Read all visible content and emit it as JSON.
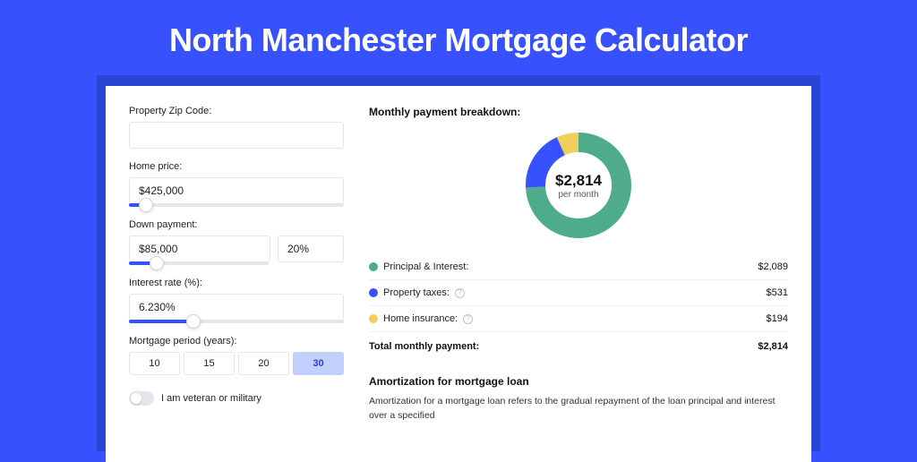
{
  "page": {
    "title": "North Manchester Mortgage Calculator",
    "bg_color": "#3751ff",
    "shadow_color": "#2b43d3",
    "card_bg": "#ffffff"
  },
  "form": {
    "zip": {
      "label": "Property Zip Code:",
      "value": ""
    },
    "home_price": {
      "label": "Home price:",
      "value": "$425,000",
      "slider_pct": 8
    },
    "down_payment": {
      "label": "Down payment:",
      "value": "$85,000",
      "pct_value": "20%",
      "slider_pct": 20
    },
    "interest": {
      "label": "Interest rate (%):",
      "value": "6.230%",
      "slider_pct": 30
    },
    "period": {
      "label": "Mortgage period (years):",
      "options": [
        "10",
        "15",
        "20",
        "30"
      ],
      "selected_index": 3
    },
    "veteran": {
      "label": "I am veteran or military",
      "on": false
    }
  },
  "breakdown": {
    "heading": "Monthly payment breakdown:",
    "donut": {
      "value": "$2,814",
      "sub": "per month",
      "slices": [
        {
          "key": "principal_interest",
          "pct": 74.2,
          "color": "#4eab8c"
        },
        {
          "key": "property_taxes",
          "pct": 18.9,
          "color": "#3751ff"
        },
        {
          "key": "home_insurance",
          "pct": 6.9,
          "color": "#f1cf5b"
        }
      ]
    },
    "items": [
      {
        "label": "Principal & Interest:",
        "amount": "$2,089",
        "color": "#4eab8c",
        "info": false
      },
      {
        "label": "Property taxes:",
        "amount": "$531",
        "color": "#3751ff",
        "info": true
      },
      {
        "label": "Home insurance:",
        "amount": "$194",
        "color": "#f1cf5b",
        "info": true
      }
    ],
    "total": {
      "label": "Total monthly payment:",
      "amount": "$2,814"
    }
  },
  "amortization": {
    "heading": "Amortization for mortgage loan",
    "text": "Amortization for a mortgage loan refers to the gradual repayment of the loan principal and interest over a specified"
  }
}
